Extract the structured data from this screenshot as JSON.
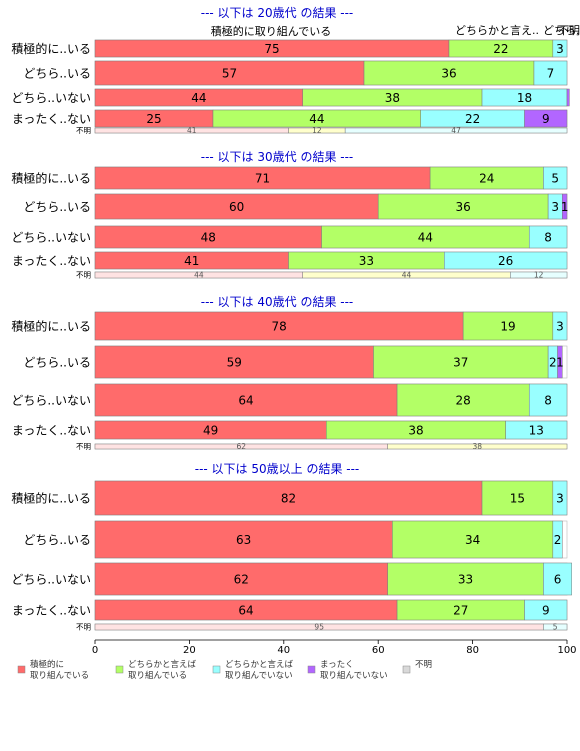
{
  "colors": {
    "c1": "#FF6B6B",
    "c2": "#B3FF66",
    "c3": "#99FFFF",
    "c4": "#B266FF",
    "c5": "#D9D9D9",
    "title": "#0000CC"
  },
  "chart_data": {
    "type": "bar",
    "orientation": "horizontal",
    "stacked": "percent",
    "xlim": [
      0,
      100
    ],
    "xticks": [
      "0",
      "20",
      "40",
      "60",
      "80",
      "100"
    ],
    "legend": {
      "position": "bottom",
      "items": [
        {
          "lines": [
            "積極的に",
            "取り組んでいる"
          ],
          "color": "#FF6B6B"
        },
        {
          "lines": [
            "どちらかと言えば",
            "取り組んでいる"
          ],
          "color": "#B3FF66"
        },
        {
          "lines": [
            "どちらかと言えば",
            "取り組んでいない"
          ],
          "color": "#99FFFF"
        },
        {
          "lines": [
            "まったく",
            "取り組んでいない"
          ],
          "color": "#B266FF"
        },
        {
          "lines": [
            "不明"
          ],
          "color": "#D9D9D9"
        }
      ]
    },
    "panels": [
      {
        "title": "--- 以下は 20歳代 の結果 ---",
        "top_labels": [
          "積極的に取り組んでいる",
          "どちらかと言え..",
          "どちら..",
          "不明"
        ],
        "rows": [
          {
            "label": "積極的に..いる",
            "values": [
              75,
              22,
              3,
              0,
              0
            ]
          },
          {
            "label": "どちら..いる",
            "values": [
              57,
              36,
              7,
              0,
              0
            ]
          },
          {
            "label": "どちら..いない",
            "values": [
              44,
              38,
              18,
              0.5,
              0
            ]
          },
          {
            "label": "まったく..ない",
            "values": [
              25,
              44,
              22,
              9,
              0
            ]
          },
          {
            "label": "不明",
            "values": [
              41,
              12,
              47,
              0,
              0
            ]
          }
        ]
      },
      {
        "title": "--- 以下は 30歳代 の結果 ---",
        "rows": [
          {
            "label": "積極的に..いる",
            "values": [
              71,
              24,
              5,
              0,
              0
            ]
          },
          {
            "label": "どちら..いる",
            "values": [
              60,
              36,
              3,
              1,
              0
            ]
          },
          {
            "label": "どちら..いない",
            "values": [
              48,
              44,
              8,
              0,
              0
            ]
          },
          {
            "label": "まったく..ない",
            "values": [
              41,
              33,
              26,
              0,
              0
            ]
          },
          {
            "label": "不明",
            "values": [
              44,
              44,
              12,
              0,
              0
            ]
          }
        ]
      },
      {
        "title": "--- 以下は 40歳代 の結果 ---",
        "rows": [
          {
            "label": "積極的に..いる",
            "values": [
              78,
              19,
              3,
              0,
              0
            ]
          },
          {
            "label": "どちら..いる",
            "values": [
              59,
              37,
              2,
              1,
              0
            ]
          },
          {
            "label": "どちら..いない",
            "values": [
              64,
              28,
              8,
              0,
              0
            ]
          },
          {
            "label": "まったく..ない",
            "values": [
              49,
              38,
              13,
              0,
              0
            ]
          },
          {
            "label": "不明",
            "values": [
              62,
              38,
              0,
              0,
              0
            ]
          }
        ]
      },
      {
        "title": "--- 以下は 50歳以上 の結果 ---",
        "rows": [
          {
            "label": "積極的に..いる",
            "values": [
              82,
              15,
              3,
              0,
              0
            ]
          },
          {
            "label": "どちら..いる",
            "values": [
              63,
              34,
              2,
              0,
              0
            ]
          },
          {
            "label": "どちら..いない",
            "values": [
              62,
              33,
              6,
              0,
              0
            ]
          },
          {
            "label": "まったく..ない",
            "values": [
              64,
              27,
              9,
              0,
              0
            ]
          },
          {
            "label": "不明",
            "values": [
              95,
              0,
              5,
              0,
              0
            ]
          }
        ]
      }
    ]
  }
}
